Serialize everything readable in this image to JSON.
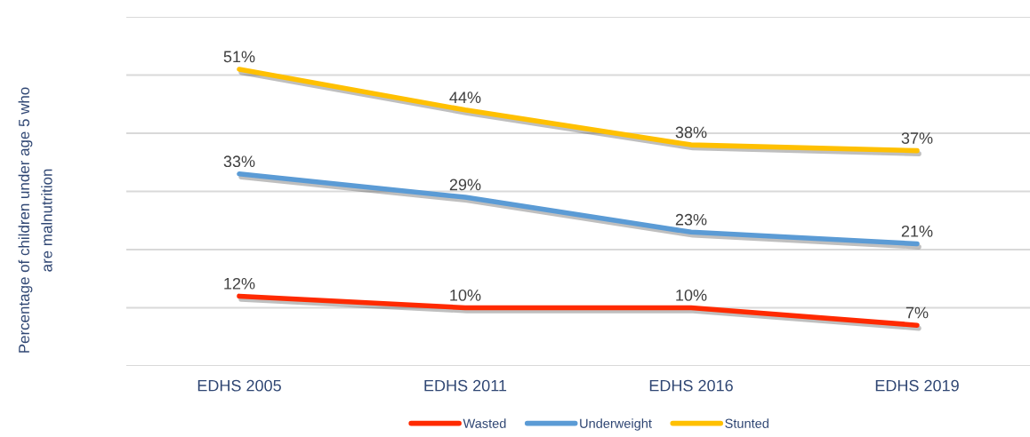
{
  "chart_data": {
    "type": "line",
    "ylabel": "Percentage of children under age 5 who\nare malnutrition",
    "categories": [
      "EDHS 2005",
      "EDHS 2011",
      "EDHS 2016",
      "EDHS 2019"
    ],
    "series": [
      {
        "name": "Wasted",
        "color": "#ff2a00",
        "values": [
          12,
          10,
          10,
          7
        ],
        "value_labels": [
          "12%",
          "10%",
          "10%",
          "7%"
        ]
      },
      {
        "name": "Underweight",
        "color": "#5b9bd5",
        "values": [
          33,
          29,
          23,
          21
        ],
        "value_labels": [
          "33%",
          "29%",
          "23%",
          "21%"
        ]
      },
      {
        "name": "Stunted",
        "color": "#ffc000",
        "values": [
          51,
          44,
          38,
          37
        ],
        "value_labels": [
          "51%",
          "44%",
          "38%",
          "37%"
        ]
      }
    ],
    "ylim": [
      0,
      60
    ],
    "yticks": [
      {
        "value": 0,
        "label": null
      },
      {
        "value": 10,
        "label": null
      },
      {
        "value": 20,
        "label": null
      },
      {
        "value": 30,
        "label": null
      },
      {
        "value": 40,
        "label": null
      },
      {
        "value": 50,
        "label": null
      },
      {
        "value": 60,
        "label": null
      }
    ],
    "grid": "y",
    "legend": "bottom",
    "tick_labels": "x",
    "line_style": "solid"
  }
}
